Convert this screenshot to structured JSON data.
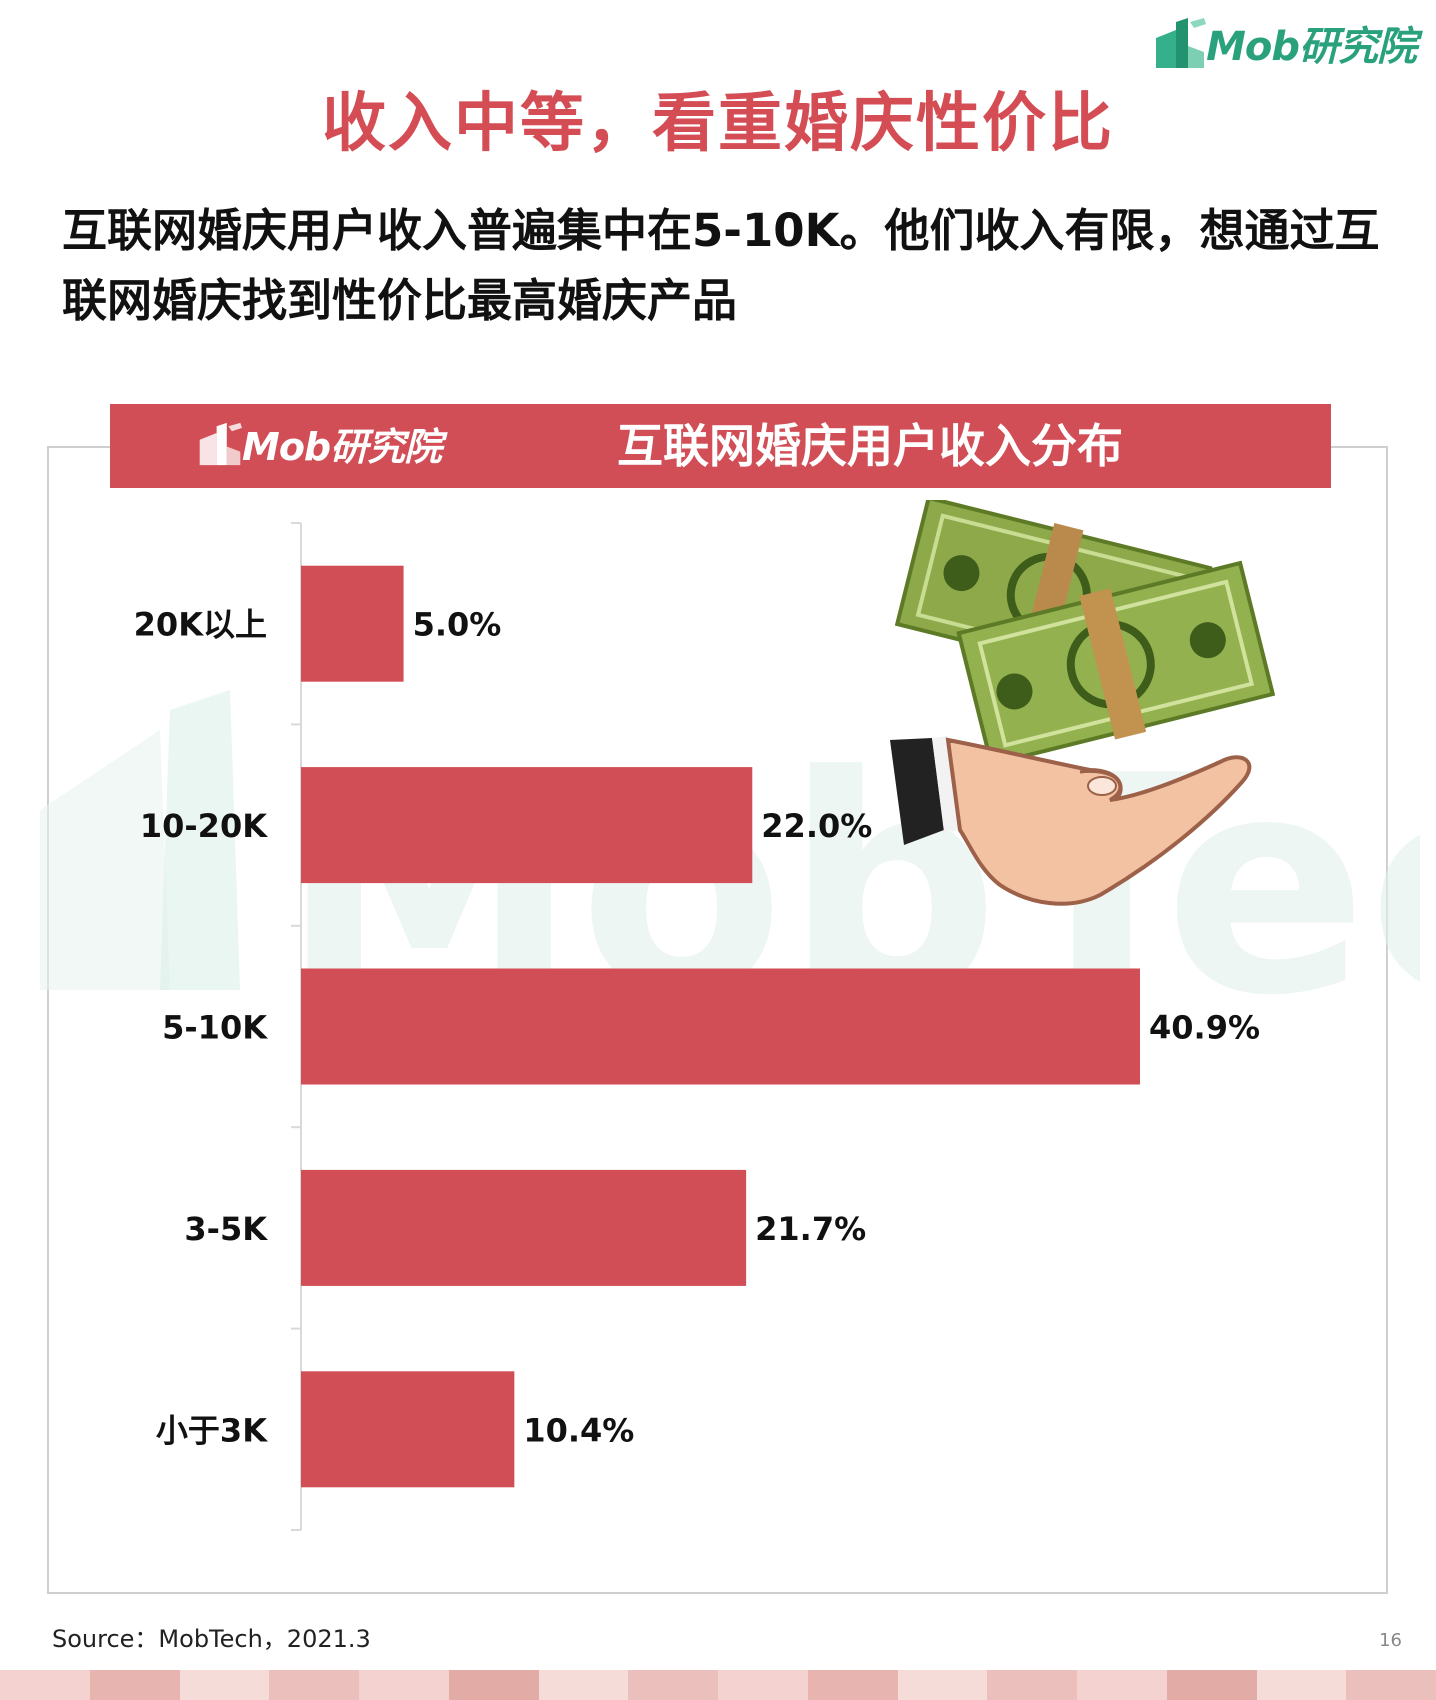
{
  "brand": {
    "logo_text": "Mob研究院",
    "accent": "#d14e56",
    "logo_color": "#2aa17d"
  },
  "title": "收入中等，看重婚庆性价比",
  "subtitle": "互联网婚庆用户收入普遍集中在5-10K。他们收入有限，想通过互联网婚庆找到性价比最高婚庆产品",
  "chart_data": {
    "type": "bar",
    "orientation": "horizontal",
    "title": "互联网婚庆用户收入分布",
    "categories": [
      "20K以上",
      "10-20K",
      "5-10K",
      "3-5K",
      "小于3K"
    ],
    "values": [
      5.0,
      22.0,
      40.9,
      21.7,
      10.4
    ],
    "value_labels": [
      "5.0%",
      "22.0%",
      "40.9%",
      "21.7%",
      "10.4%"
    ],
    "unit": "%",
    "xlim": [
      0,
      50
    ],
    "bar_color": "#d14e56",
    "grid": false,
    "legend": "none"
  },
  "decor": {
    "illustration": "hand-holding-money-icon",
    "watermark": "MobTech 袤博"
  },
  "source": "Source：MobTech，2021.3",
  "page_number": "16"
}
